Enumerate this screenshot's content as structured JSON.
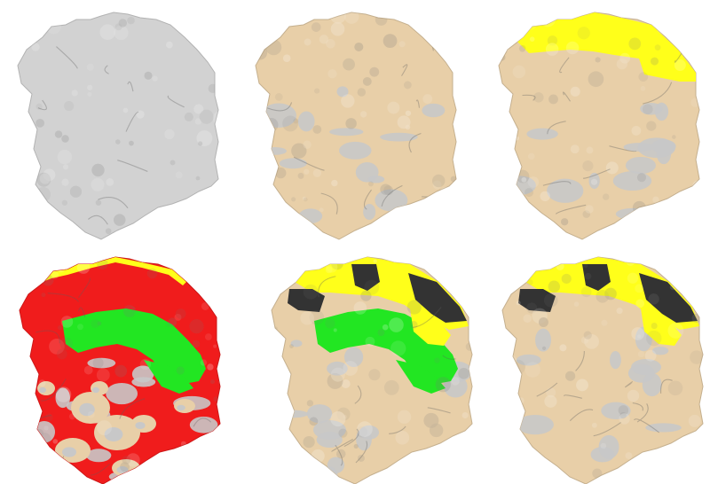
{
  "figure": {
    "panels": [
      {
        "id": "gray-mesh",
        "fill": "#d2d2d2",
        "regions": []
      },
      {
        "id": "tan-mesh",
        "fill": "#e8cfa8",
        "regions": []
      },
      {
        "id": "tan-yellow",
        "fill": "#e8cfa8",
        "regions": [
          {
            "type": "top-right",
            "color": "#ffff1a"
          }
        ]
      },
      {
        "id": "red-green",
        "fill": "#f01c1c",
        "regions": [
          {
            "type": "ring",
            "color": "#22e622"
          },
          {
            "type": "rim",
            "color": "#ffff1a"
          }
        ]
      },
      {
        "id": "tan-green-yellow-black",
        "fill": "#e8cfa8",
        "regions": [
          {
            "type": "ring",
            "color": "#22e622"
          },
          {
            "type": "top-arc",
            "color": "#ffff1a"
          },
          {
            "type": "blocks",
            "color": "#333333"
          }
        ]
      },
      {
        "id": "tan-yellow-black",
        "fill": "#e8cfa8",
        "regions": [
          {
            "type": "top-arc",
            "color": "#ffff1a"
          },
          {
            "type": "blocks",
            "color": "#333333"
          }
        ]
      }
    ]
  }
}
